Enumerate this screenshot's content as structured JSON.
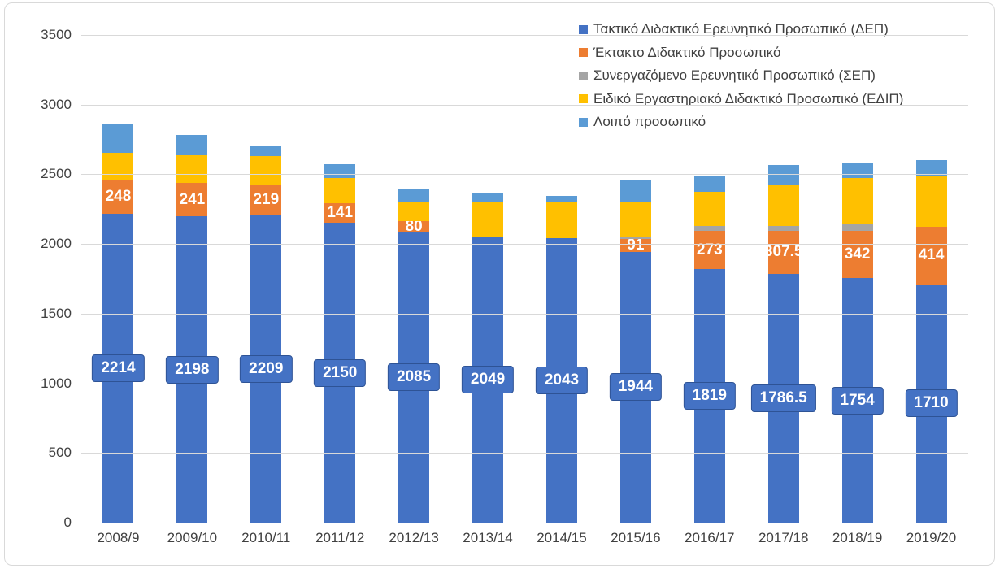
{
  "chart_data": {
    "type": "bar",
    "stacked": true,
    "title": "",
    "xlabel": "",
    "ylabel": "",
    "ylim": [
      0,
      3500
    ],
    "ytick_step": 500,
    "yticks": [
      "0",
      "500",
      "1000",
      "1500",
      "2000",
      "2500",
      "3000",
      "3500"
    ],
    "grid": true,
    "legend_position": "top-right",
    "categories": [
      "2008/9",
      "2009/10",
      "2010/11",
      "2011/12",
      "2012/13",
      "2013/14",
      "2014/15",
      "2015/16",
      "2016/17",
      "2017/18",
      "2018/19",
      "2019/20"
    ],
    "series": [
      {
        "name": "Τακτικό Διδακτικό Ερευνητικό Προσωπικό (ΔΕΠ)",
        "color": "#4472C4",
        "label_style": "callout",
        "values": [
          2214,
          2198,
          2209,
          2150,
          2085,
          2049,
          2043,
          1944,
          1819,
          1786.5,
          1754,
          1710
        ],
        "labels": [
          "2214",
          "2198",
          "2209",
          "2150",
          "2085",
          "2049",
          "2043",
          "1944",
          "1819",
          "1786.5",
          "1754",
          "1710"
        ]
      },
      {
        "name": "Έκτακτο Διδακτικό Προσωπικό",
        "color": "#ED7D31",
        "label_style": "plain",
        "values": [
          248,
          241,
          219,
          141,
          80,
          0,
          0,
          91,
          273,
          307.5,
          342,
          414
        ],
        "labels": [
          "248",
          "241",
          "219",
          "141",
          "80",
          "",
          "",
          "91",
          "273",
          "307.5",
          "342",
          "414"
        ]
      },
      {
        "name": "Συνεργαζόμενο Ερευνητικό Προσωπικό (ΣΕΠ)",
        "color": "#A5A5A5",
        "label_style": "none",
        "values": [
          0,
          0,
          0,
          0,
          0,
          0,
          0,
          20,
          35,
          35,
          45,
          0
        ],
        "labels": [
          "",
          "",
          "",
          "",
          "",
          "",
          "",
          "",
          "",
          "",
          "",
          ""
        ]
      },
      {
        "name": "Ειδικό Εργαστηριακό Διδακτικό Προσωπικό (ΕΔΙΠ)",
        "color": "#FFC000",
        "label_style": "none",
        "values": [
          195,
          200,
          200,
          180,
          140,
          255,
          255,
          250,
          250,
          295,
          335,
          360
        ],
        "labels": [
          "",
          "",
          "",
          "",
          "",
          "",
          "",
          "",
          "",
          "",
          "",
          ""
        ]
      },
      {
        "name": "Λοιπό προσωπικό",
        "color": "#5B9BD5",
        "label_style": "none",
        "values": [
          210,
          145,
          80,
          100,
          85,
          60,
          45,
          155,
          110,
          145,
          110,
          115
        ],
        "labels": [
          "",
          "",
          "",
          "",
          "",
          "",
          "",
          "",
          "",
          "",
          "",
          ""
        ]
      }
    ]
  },
  "style": {
    "gridline_color": "#D9D9D9",
    "axis_line_color": "#BFBFBF",
    "axis_text_color": "#404040",
    "data_label_color": "#FFFFFF",
    "callout_border_color": "#2E5395",
    "chart_border_color": "#D9D9D9",
    "background": "#FFFFFF"
  }
}
